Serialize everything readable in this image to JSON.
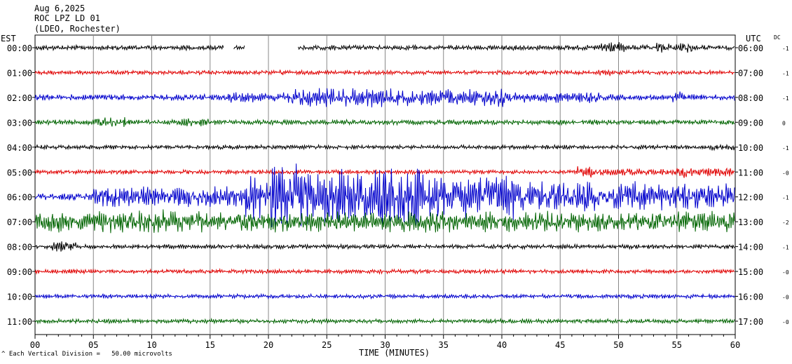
{
  "header": {
    "date": "Aug 6,2025",
    "station": "ROC LPZ LD 01",
    "network": "(LDEO, Rochester)"
  },
  "labels": {
    "left_tz": "EST",
    "right_tz": "UTC",
    "dc": "DC",
    "xlabel": "TIME (MINUTES)",
    "scale_note": "Each Vertical Division =   50.00 microvolts",
    "scale_mark": "^"
  },
  "colors": [
    "#000000",
    "#e00000",
    "#0000cc",
    "#006400"
  ],
  "chart_data": {
    "type": "line",
    "subtype": "helicorder",
    "xlabel": "TIME (MINUTES)",
    "xlim": [
      0,
      60
    ],
    "x_ticks": [
      "00",
      "05",
      "10",
      "15",
      "20",
      "25",
      "30",
      "35",
      "40",
      "45",
      "50",
      "55",
      "60"
    ],
    "grid": "vertical lines every 5 minutes",
    "rows": [
      {
        "est": "00:00",
        "utc": "06:00",
        "dc": "-1",
        "color": "#000000",
        "base": 3,
        "gaps": [
          [
            16.2,
            17.0
          ],
          [
            18.0,
            22.5
          ]
        ],
        "bursts": [
          [
            48.5,
            50.5,
            7
          ],
          [
            53.2,
            56.5,
            6
          ]
        ]
      },
      {
        "est": "01:00",
        "utc": "07:00",
        "dc": "-1",
        "color": "#e00000",
        "base": 2.5,
        "gaps": [],
        "bursts": [
          [
            20.5,
            21.5,
            4
          ],
          [
            48.0,
            49.5,
            4
          ]
        ]
      },
      {
        "est": "02:00",
        "utc": "08:00",
        "dc": "-1",
        "color": "#0000cc",
        "base": 3.5,
        "gaps": [],
        "bursts": [
          [
            16.5,
            22.0,
            6
          ],
          [
            22.0,
            31.0,
            11
          ],
          [
            31.0,
            38.0,
            10
          ],
          [
            38.0,
            40.5,
            12
          ],
          [
            40.5,
            47.5,
            6
          ],
          [
            47.5,
            48.5,
            7
          ],
          [
            54.5,
            55.5,
            7
          ]
        ]
      },
      {
        "est": "03:00",
        "utc": "09:00",
        "dc": "0",
        "color": "#006400",
        "base": 3,
        "gaps": [],
        "bursts": [
          [
            5.0,
            8.0,
            6
          ],
          [
            12.5,
            15.0,
            5
          ]
        ]
      },
      {
        "est": "04:00",
        "utc": "10:00",
        "dc": "-1",
        "color": "#000000",
        "base": 2.5,
        "gaps": [],
        "bursts": [
          [
            58.0,
            60.0,
            4
          ]
        ]
      },
      {
        "est": "05:00",
        "utc": "11:00",
        "dc": "-0",
        "color": "#e00000",
        "base": 2.5,
        "gaps": [],
        "bursts": [
          [
            46.5,
            48.0,
            8
          ],
          [
            48.0,
            55.0,
            4
          ],
          [
            55.0,
            56.0,
            7
          ],
          [
            56.0,
            60.0,
            5
          ]
        ]
      },
      {
        "est": "06:00",
        "utc": "12:00",
        "dc": "-1",
        "color": "#0000cc",
        "base": 4,
        "gaps": [],
        "bursts": [
          [
            5.0,
            18.0,
            12
          ],
          [
            18.0,
            20.0,
            28
          ],
          [
            20.0,
            24.0,
            40
          ],
          [
            24.0,
            29.0,
            32
          ],
          [
            29.0,
            33.0,
            42
          ],
          [
            33.0,
            41.0,
            26
          ],
          [
            41.0,
            52.0,
            18
          ],
          [
            52.0,
            60.0,
            16
          ]
        ]
      },
      {
        "est": "07:00",
        "utc": "13:00",
        "dc": "-2",
        "color": "#006400",
        "base": 12,
        "gaps": [],
        "bursts": [
          [
            0.0,
            12.0,
            14
          ],
          [
            12.0,
            20.0,
            9
          ],
          [
            20.0,
            32.0,
            7
          ],
          [
            32.0,
            60.0,
            3
          ]
        ]
      },
      {
        "est": "08:00",
        "utc": "14:00",
        "dc": "-1",
        "color": "#000000",
        "base": 2.5,
        "gaps": [],
        "bursts": [
          [
            1.5,
            3.5,
            6
          ]
        ]
      },
      {
        "est": "09:00",
        "utc": "15:00",
        "dc": "-0",
        "color": "#e00000",
        "base": 2.5,
        "gaps": [],
        "bursts": []
      },
      {
        "est": "10:00",
        "utc": "16:00",
        "dc": "-0",
        "color": "#0000cc",
        "base": 2.5,
        "gaps": [],
        "bursts": [
          [
            5.5,
            6.5,
            3
          ]
        ]
      },
      {
        "est": "11:00",
        "utc": "17:00",
        "dc": "-0",
        "color": "#006400",
        "base": 2.5,
        "gaps": [],
        "bursts": []
      }
    ]
  }
}
